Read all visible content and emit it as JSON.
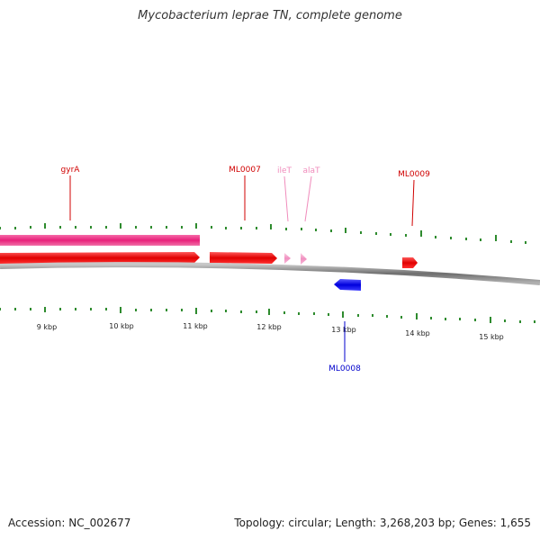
{
  "title": "Mycobacterium leprae TN, complete genome",
  "footer": {
    "accession": "Accession: NC_002677",
    "summary": "Topology: circular; Length: 3,268,203 bp; Genes: 1,655"
  },
  "colors": {
    "forward_gene": "#ee0000",
    "reverse_gene": "#1010ee",
    "trna_gene": "#f4a0c8",
    "track_bar": "#e8207a",
    "tick": "#2e8b2e",
    "backbone": "#808080"
  },
  "scale": {
    "unit": "kbp",
    "labels": [
      "9 kbp",
      "10 kbp",
      "11 kbp",
      "12 kbp",
      "13 kbp",
      "14 kbp",
      "15 kbp"
    ]
  },
  "genes": [
    {
      "name": "gyrA",
      "strand": "forward",
      "type": "CDS"
    },
    {
      "name": "ML0007",
      "strand": "forward",
      "type": "CDS"
    },
    {
      "name": "ileT",
      "strand": "forward",
      "type": "tRNA"
    },
    {
      "name": "alaT",
      "strand": "forward",
      "type": "tRNA"
    },
    {
      "name": "ML0009",
      "strand": "forward",
      "type": "CDS"
    },
    {
      "name": "ML0008",
      "strand": "reverse",
      "type": "CDS"
    }
  ]
}
